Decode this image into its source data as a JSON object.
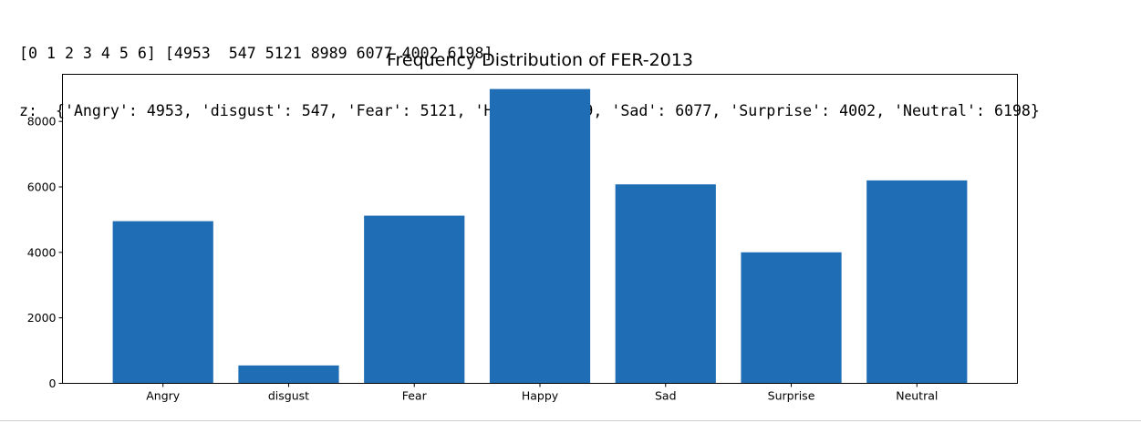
{
  "output": {
    "lines": [
      "[0 1 2 3 4 5 6] [4953  547 5121 8989 6077 4002 6198]",
      "z:  {'Angry': 4953, 'disgust': 547, 'Fear': 5121, 'Happy': 8989, 'Sad': 6077, 'Surprise': 4002, 'Neutral': 6198}"
    ]
  },
  "chart_data": {
    "type": "bar",
    "title": "Frequency Distribution of FER-2013",
    "xlabel": "",
    "ylabel": "",
    "categories": [
      "Angry",
      "disgust",
      "Fear",
      "Happy",
      "Sad",
      "Surprise",
      "Neutral"
    ],
    "values": [
      4953,
      547,
      5121,
      8989,
      6077,
      4002,
      6198
    ],
    "ylim": [
      0,
      9438.45
    ],
    "yticks": [
      0,
      2000,
      4000,
      6000,
      8000
    ],
    "grid": false,
    "bar_color": "#1f6db5"
  }
}
